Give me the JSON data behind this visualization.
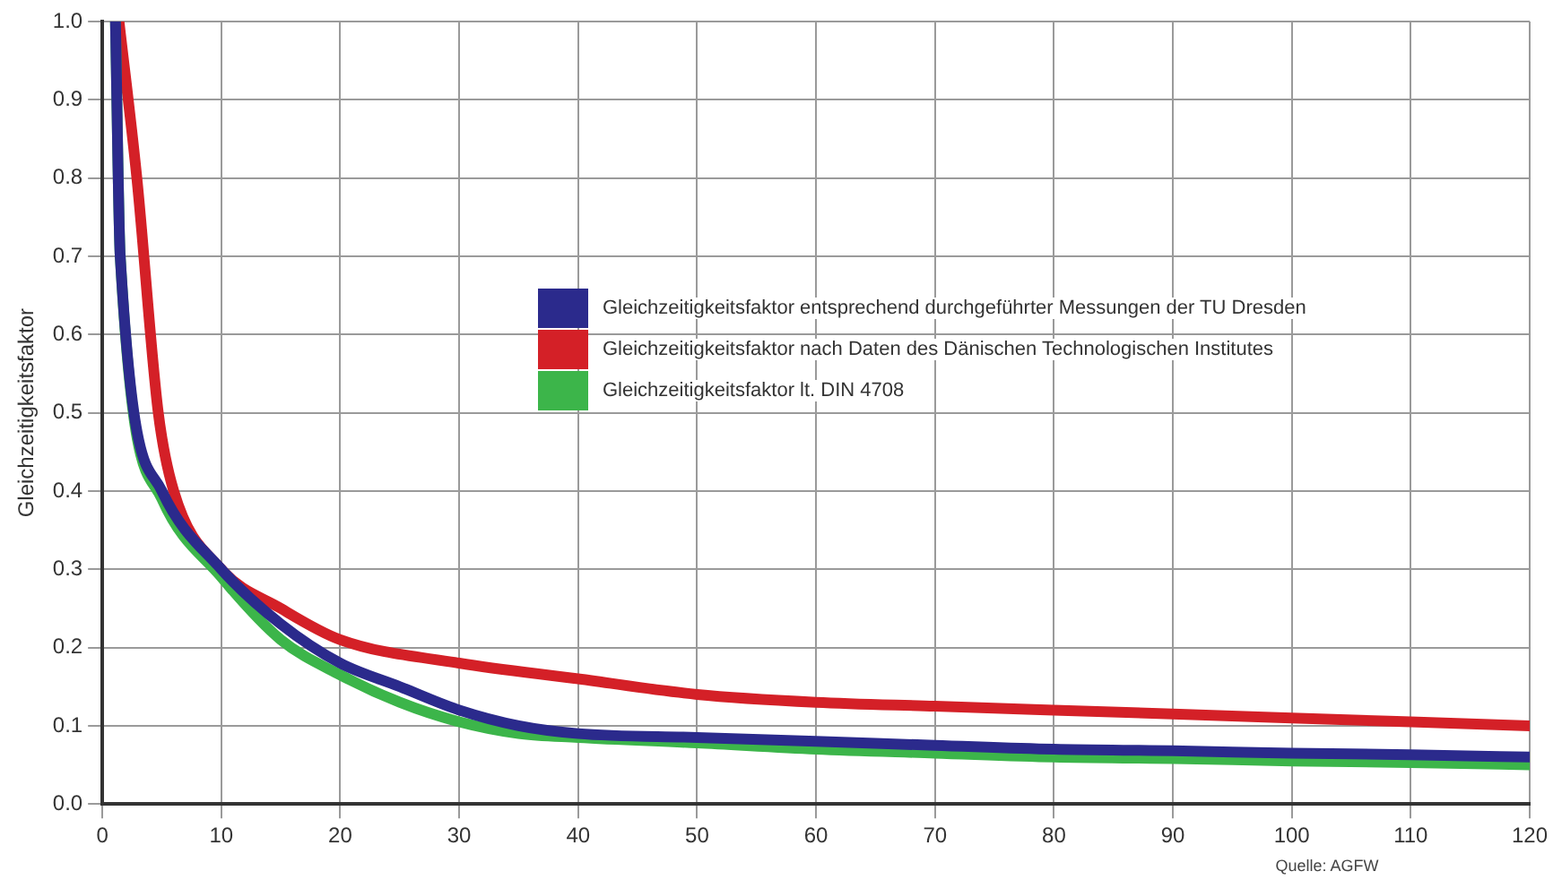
{
  "chart_data": {
    "type": "line",
    "ylabel": "Gleichzeitigkeitsfaktor",
    "annotations": [
      "Quelle: AGFW"
    ],
    "xlim": [
      0,
      120
    ],
    "xticks": [
      0,
      10,
      20,
      30,
      40,
      50,
      60,
      70,
      80,
      90,
      100,
      110,
      120
    ],
    "ylim": [
      0,
      1
    ],
    "yticks": [
      {
        "value": 0,
        "label": "0.0"
      },
      {
        "value": 0.1,
        "label": "0.1"
      },
      {
        "value": 0.2,
        "label": "0.2"
      },
      {
        "value": 0.3,
        "label": "0.3"
      },
      {
        "value": 0.4,
        "label": "0.4"
      },
      {
        "value": 0.5,
        "label": "0.5"
      },
      {
        "value": 0.6,
        "label": "0.6"
      },
      {
        "value": 0.7,
        "label": "0.7"
      },
      {
        "value": 0.8,
        "label": "0.8"
      },
      {
        "value": 0.9,
        "label": "0.9"
      },
      {
        "value": 1,
        "label": "1.0"
      }
    ],
    "grid": true,
    "legend": "center",
    "marker": "none",
    "line_style": "solid",
    "series": [
      {
        "name": "Gleichzeitigkeitsfaktor entsprechend durchgeführter Messungen der TU Dresden",
        "color": "#2b2a8c",
        "x": [
          1.1,
          1.5,
          5,
          10,
          15,
          20,
          25,
          30,
          35,
          40,
          50,
          60,
          70,
          80,
          90,
          100,
          110,
          120
        ],
        "values": [
          1,
          0.7,
          0.4,
          0.3,
          0.23,
          0.18,
          0.15,
          0.12,
          0.1,
          0.09,
          0.085,
          0.08,
          0.075,
          0.07,
          0.068,
          0.065,
          0.063,
          0.06
        ]
      },
      {
        "name": "Gleichzeitigkeitsfaktor nach Daten des Dänischen Technologischen Institutes",
        "color": "#d42027",
        "x": [
          1.4,
          2.9,
          4.7,
          6,
          10,
          15,
          20,
          30,
          40,
          50,
          60,
          70,
          80,
          90,
          100,
          110,
          120
        ],
        "values": [
          1,
          0.8,
          0.5,
          0.4,
          0.3,
          0.25,
          0.21,
          0.18,
          0.16,
          0.14,
          0.13,
          0.125,
          0.12,
          0.115,
          0.11,
          0.105,
          0.1
        ]
      },
      {
        "name": "Gleichzeitigkeitsfaktor lt. DIN 4708",
        "color": "#3cb54a",
        "x": [
          1.1,
          1.5,
          5,
          10,
          15,
          20,
          25,
          30,
          35,
          40,
          50,
          60,
          70,
          80,
          90,
          100,
          110,
          120
        ],
        "values": [
          1,
          0.7,
          0.39,
          0.29,
          0.21,
          0.165,
          0.13,
          0.105,
          0.09,
          0.085,
          0.078,
          0.07,
          0.065,
          0.06,
          0.058,
          0.055,
          0.053,
          0.05
        ]
      }
    ]
  }
}
